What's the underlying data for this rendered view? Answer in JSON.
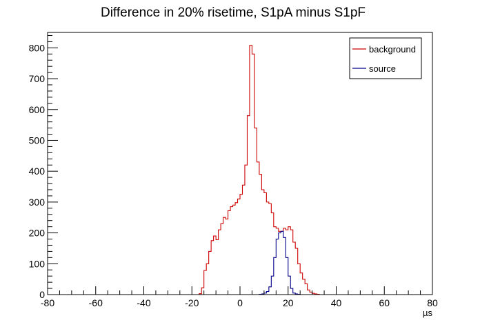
{
  "chart_data": {
    "type": "histogram",
    "title": "Difference in 20% risetime, S1pA minus S1pF",
    "xlabel": "µs",
    "ylabel": "",
    "xlim": [
      -80,
      80
    ],
    "ylim": [
      0,
      850
    ],
    "bin_width": 1,
    "xticks": [
      -80,
      -60,
      -40,
      -20,
      0,
      20,
      40,
      60,
      80
    ],
    "yticks": [
      0,
      100,
      200,
      300,
      400,
      500,
      600,
      700,
      800
    ],
    "grid": false,
    "legend_position": "top-right",
    "series": [
      {
        "name": "background",
        "color": "#cc0000",
        "x_start": -17,
        "values": [
          3,
          22,
          78,
          100,
          140,
          175,
          190,
          178,
          210,
          230,
          250,
          245,
          272,
          285,
          290,
          298,
          310,
          325,
          355,
          420,
          580,
          808,
          780,
          540,
          430,
          390,
          340,
          330,
          300,
          295,
          265,
          220,
          215,
          205,
          205,
          215,
          210,
          220,
          210,
          170,
          150,
          100,
          70,
          50,
          35,
          15,
          8,
          4,
          2,
          1
        ]
      },
      {
        "name": "source",
        "color": "#00008b",
        "x_start": 8,
        "values": [
          1,
          2,
          5,
          10,
          25,
          60,
          120,
          180,
          200,
          205,
          185,
          120,
          60,
          20,
          5,
          2,
          1
        ]
      }
    ]
  }
}
